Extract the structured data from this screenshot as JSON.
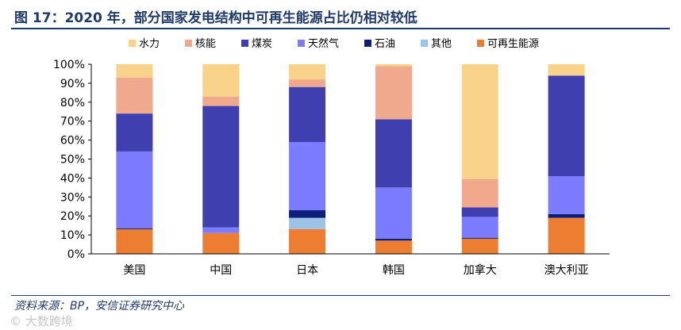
{
  "figure": {
    "title": "图 17：2020 年，部分国家发电结构中可再生能源占比仍相对较低",
    "source": "资料来源：BP，安信证券研究中心",
    "watermark": "© 大数跨境"
  },
  "chart_data": {
    "type": "bar",
    "stacked": true,
    "categories": [
      "美国",
      "中国",
      "日本",
      "韩国",
      "加拿大",
      "澳大利亚"
    ],
    "ylim": [
      0,
      100
    ],
    "yticks": [
      "0%",
      "10%",
      "20%",
      "30%",
      "40%",
      "50%",
      "60%",
      "70%",
      "80%",
      "90%",
      "100%"
    ],
    "legend_position": "top",
    "grid": false,
    "series": [
      {
        "name": "可再生能源",
        "color": "#ed7d31",
        "values": [
          13,
          11,
          13,
          7,
          8,
          19
        ]
      },
      {
        "name": "其他",
        "color": "#9dc3e6",
        "values": [
          0,
          0,
          6,
          0,
          0,
          0
        ]
      },
      {
        "name": "石油",
        "color": "#0b1e7a",
        "values": [
          0.5,
          0,
          4,
          1,
          0.5,
          2
        ]
      },
      {
        "name": "天然气",
        "color": "#7b7bff",
        "values": [
          40.5,
          3,
          36,
          27,
          11,
          20
        ]
      },
      {
        "name": "煤炭",
        "color": "#3f3fb0",
        "values": [
          20,
          64,
          29,
          36,
          5,
          53
        ]
      },
      {
        "name": "核能",
        "color": "#f0a98c",
        "values": [
          19,
          5,
          4,
          28,
          15,
          0
        ]
      },
      {
        "name": "水力",
        "color": "#fad38a",
        "values": [
          7,
          17,
          8,
          1,
          60.5,
          6
        ]
      }
    ],
    "legend_order": [
      "水力",
      "核能",
      "煤炭",
      "天然气",
      "石油",
      "其他",
      "可再生能源"
    ]
  }
}
